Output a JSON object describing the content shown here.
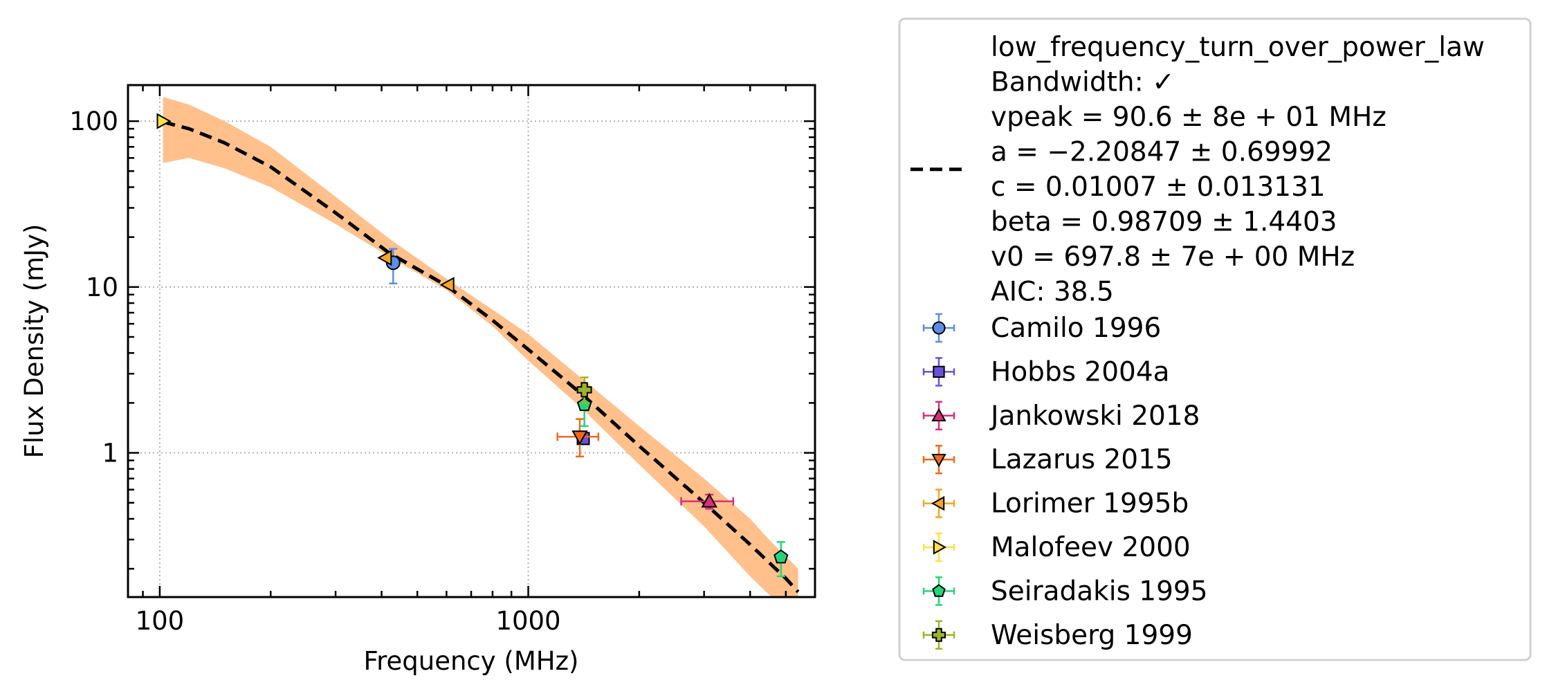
{
  "chart_data": {
    "type": "scatter",
    "xlabel": "Frequency (MHz)",
    "ylabel": "Flux Density (mJy)",
    "xscale": "log",
    "yscale": "log",
    "xlim": [
      82,
      6000
    ],
    "ylim": [
      0.135,
      165
    ],
    "x_ticks": [
      100,
      1000
    ],
    "x_tick_labels": [
      "100",
      "1000"
    ],
    "y_ticks": [
      1,
      10,
      100
    ],
    "y_tick_labels": [
      "1",
      "10",
      "100"
    ],
    "grid": true,
    "legend_position": "outside-right",
    "fit": {
      "model": "low_frequency_turn_over_power_law",
      "legend_lines": [
        "low_frequency_turn_over_power_law",
        "Bandwidth: ✓",
        "vpeak = 90.6 ± 8e + 01 MHz",
        "a = −2.20847 ± 0.69992",
        "c = 0.01007 ± 0.013131",
        "beta = 0.98709 ± 1.4403",
        "v0 = 697.8 ± 7e + 00 MHz",
        "AIC: 38.5"
      ],
      "curve": {
        "x": [
          102,
          120,
          150,
          200,
          300,
          420,
          600,
          800,
          1000,
          1400,
          2000,
          3000,
          4000,
          5000,
          5400
        ],
        "y": [
          99,
          90,
          74,
          53,
          28,
          16,
          10.2,
          6.3,
          4.2,
          2.25,
          1.1,
          0.5,
          0.28,
          0.175,
          0.145
        ]
      },
      "band": {
        "x": [
          102,
          120,
          150,
          200,
          300,
          420,
          600,
          800,
          1000,
          1400,
          2000,
          3000,
          4000,
          4500,
          5400
        ],
        "upper": [
          140,
          126,
          100,
          70,
          35,
          19.5,
          11.2,
          7.3,
          5.2,
          2.8,
          1.45,
          0.7,
          0.4,
          0.3,
          0.2
        ],
        "lower": [
          56,
          60,
          52,
          40,
          24,
          15.2,
          9.6,
          5.8,
          3.6,
          1.85,
          0.85,
          0.36,
          0.18,
          0.14,
          0.1
        ]
      },
      "line_color": "#000000",
      "band_color": "#ffc08c"
    },
    "series": [
      {
        "name": "Camilo 1996",
        "marker": "circle",
        "color": "#5b8ee6",
        "points": [
          {
            "x": 430,
            "y": 14,
            "yerr_lo": 10.5,
            "yerr_hi": 17,
            "xerr_lo": 430,
            "xerr_hi": 430
          }
        ]
      },
      {
        "name": "Hobbs 2004a",
        "marker": "square",
        "color": "#6a52d8",
        "points": [
          {
            "x": 1410,
            "y": 1.22,
            "yerr_lo": 1.22,
            "yerr_hi": 1.22,
            "xerr_lo": 1410,
            "xerr_hi": 1410
          }
        ]
      },
      {
        "name": "Jankowski 2018",
        "marker": "triangle-up",
        "color": "#d62f7a",
        "points": [
          {
            "x": 3100,
            "y": 0.51,
            "yerr_lo": 0.46,
            "yerr_hi": 0.56,
            "xerr_lo": 2600,
            "xerr_hi": 3600
          }
        ]
      },
      {
        "name": "Lazarus 2015",
        "marker": "triangle-down",
        "color": "#f06a1a",
        "points": [
          {
            "x": 1380,
            "y": 1.25,
            "yerr_lo": 0.95,
            "yerr_hi": 1.6,
            "xerr_lo": 1200,
            "xerr_hi": 1550
          }
        ]
      },
      {
        "name": "Lorimer 1995b",
        "marker": "triangle-left",
        "color": "#f5a623",
        "points": [
          {
            "x": 410,
            "y": 15,
            "yerr_lo": 15,
            "yerr_hi": 15,
            "xerr_lo": 410,
            "xerr_hi": 410
          },
          {
            "x": 606,
            "y": 10.3,
            "yerr_lo": 10.3,
            "yerr_hi": 10.3,
            "xerr_lo": 606,
            "xerr_hi": 606
          }
        ]
      },
      {
        "name": "Malofeev 2000",
        "marker": "triangle-right",
        "color": "#fde047",
        "points": [
          {
            "x": 102,
            "y": 100,
            "yerr_lo": 100,
            "yerr_hi": 100,
            "xerr_lo": 102,
            "xerr_hi": 102
          }
        ]
      },
      {
        "name": "Seiradakis 1995",
        "marker": "pentagon",
        "color": "#25d47a",
        "points": [
          {
            "x": 1420,
            "y": 1.95,
            "yerr_lo": 1.45,
            "yerr_hi": 2.4,
            "xerr_lo": 1420,
            "xerr_hi": 1420
          },
          {
            "x": 4850,
            "y": 0.235,
            "yerr_lo": 0.18,
            "yerr_hi": 0.29,
            "xerr_lo": 4750,
            "xerr_hi": 4950
          }
        ]
      },
      {
        "name": "Weisberg 1999",
        "marker": "plus",
        "color": "#9ab526",
        "points": [
          {
            "x": 1420,
            "y": 2.4,
            "yerr_lo": 2.0,
            "yerr_hi": 2.85,
            "xerr_lo": 1420,
            "xerr_hi": 1420
          }
        ]
      }
    ]
  }
}
